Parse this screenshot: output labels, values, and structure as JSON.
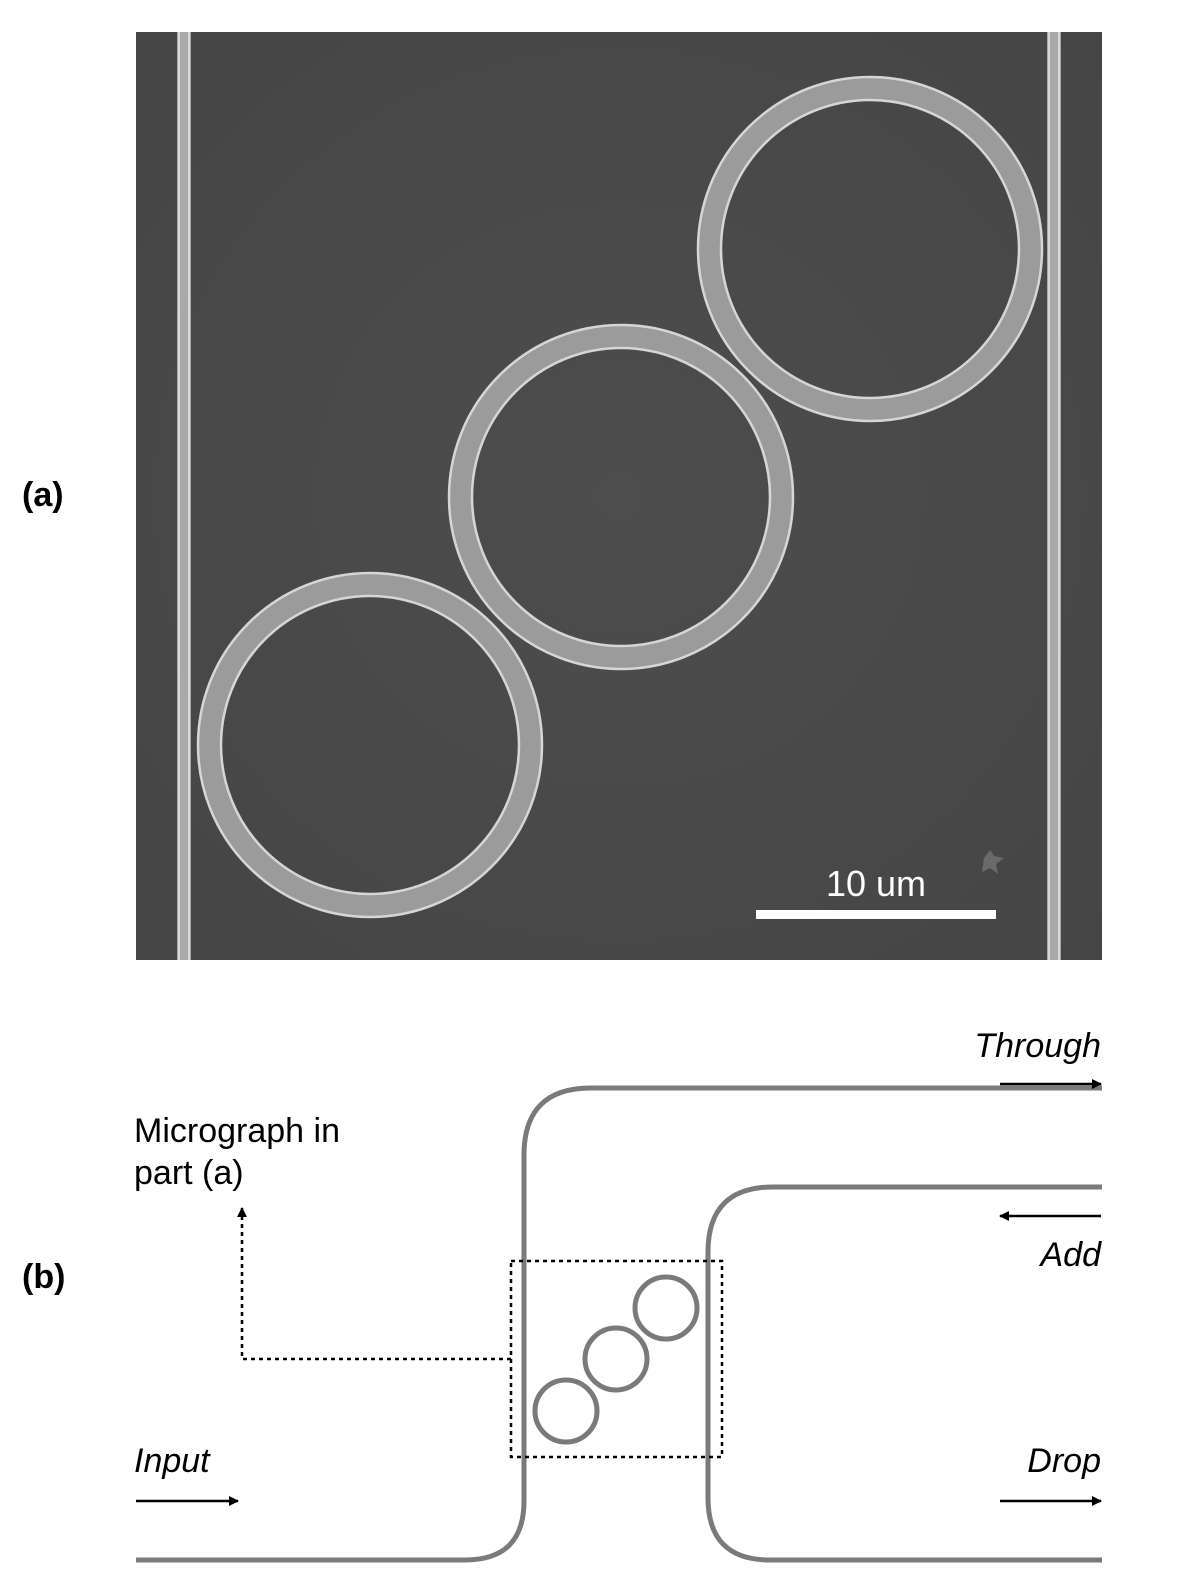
{
  "panels": {
    "a": {
      "label": "(a)"
    },
    "b": {
      "label": "(b)"
    }
  },
  "micrograph": {
    "background_color": "#4a4a4a",
    "ring_color": "#cfcfcf",
    "scale_bar": {
      "label": "10 um",
      "color": "#ffffff"
    }
  },
  "schematic": {
    "waveguide_color": "#7a7a7a",
    "callout": [
      "Micrograph in",
      "part (a)"
    ],
    "ports": {
      "input": "Input",
      "through": "Through",
      "add": "Add",
      "drop": "Drop"
    }
  }
}
